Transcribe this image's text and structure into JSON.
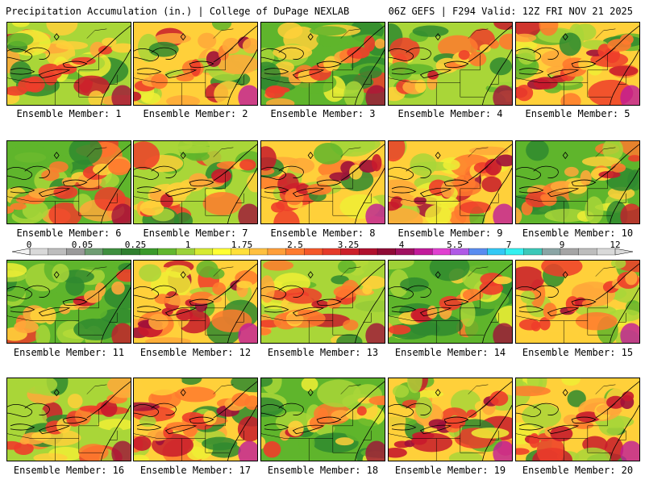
{
  "header": {
    "left": "Precipitation Accumulation (in.) | College of DuPage NEXLAB",
    "right": "06Z GEFS | F294 Valid: 12Z FRI NOV 21 2025"
  },
  "panels": [
    {
      "label": "Ensemble Member: 1",
      "intensity": 0.55,
      "cool": 0.35
    },
    {
      "label": "Ensemble Member: 2",
      "intensity": 0.65,
      "cool": 0.25
    },
    {
      "label": "Ensemble Member: 3",
      "intensity": 0.45,
      "cool": 0.55
    },
    {
      "label": "Ensemble Member: 4",
      "intensity": 0.5,
      "cool": 0.5
    },
    {
      "label": "Ensemble Member: 5",
      "intensity": 0.6,
      "cool": 0.3
    },
    {
      "label": "Ensemble Member: 6",
      "intensity": 0.4,
      "cool": 0.55
    },
    {
      "label": "Ensemble Member: 7",
      "intensity": 0.45,
      "cool": 0.5
    },
    {
      "label": "Ensemble Member: 8",
      "intensity": 0.6,
      "cool": 0.25
    },
    {
      "label": "Ensemble Member: 9",
      "intensity": 0.75,
      "cool": 0.2
    },
    {
      "label": "Ensemble Member: 10",
      "intensity": 0.35,
      "cool": 0.6
    },
    {
      "label": "Ensemble Member: 11",
      "intensity": 0.35,
      "cool": 0.7
    },
    {
      "label": "Ensemble Member: 12",
      "intensity": 0.65,
      "cool": 0.2
    },
    {
      "label": "Ensemble Member: 13",
      "intensity": 0.45,
      "cool": 0.5
    },
    {
      "label": "Ensemble Member: 14",
      "intensity": 0.4,
      "cool": 0.6
    },
    {
      "label": "Ensemble Member: 15",
      "intensity": 0.6,
      "cool": 0.3
    },
    {
      "label": "Ensemble Member: 16",
      "intensity": 0.5,
      "cool": 0.45
    },
    {
      "label": "Ensemble Member: 17",
      "intensity": 0.7,
      "cool": 0.25
    },
    {
      "label": "Ensemble Member: 18",
      "intensity": 0.4,
      "cool": 0.6
    },
    {
      "label": "Ensemble Member: 19",
      "intensity": 0.6,
      "cool": 0.3
    },
    {
      "label": "Ensemble Member: 20",
      "intensity": 0.7,
      "cool": 0.2
    }
  ],
  "colorbar": {
    "labels": [
      "0",
      "0.05",
      "0.25",
      "1",
      "1.75",
      "2.5",
      "3.25",
      "4",
      "5.5",
      "7",
      "9",
      "12"
    ],
    "colors": [
      "#d9d9d9",
      "#bdbdbd",
      "#9a9a9a",
      "#6f9d73",
      "#3f8f3f",
      "#2f7f2f",
      "#3a9a2a",
      "#62b72e",
      "#9bd23a",
      "#d6ea32",
      "#ffff33",
      "#ffe03a",
      "#ffc040",
      "#ff9f3a",
      "#ff7b30",
      "#f5582a",
      "#e53a2a",
      "#cc1f2a",
      "#b0102e",
      "#8f0a36",
      "#a01060",
      "#c21a9a",
      "#e040d0",
      "#b05ae6",
      "#5a8cf0",
      "#33c8f5",
      "#33f0f0",
      "#3cc8b8",
      "#8aa5a5",
      "#a5a5a5",
      "#bdbdbd",
      "#d9d9d9"
    ]
  }
}
